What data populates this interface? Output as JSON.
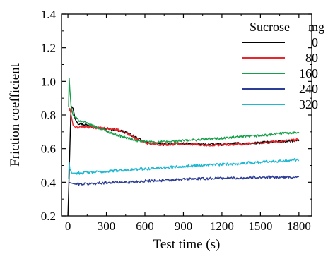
{
  "chart_data": {
    "type": "line",
    "xlabel": "Test time (s)",
    "ylabel": "Friction coefficient",
    "xlim": [
      -50,
      1900
    ],
    "ylim": [
      0.2,
      1.4
    ],
    "xticks": [
      0,
      300,
      600,
      900,
      1200,
      1500,
      1800
    ],
    "yticks": [
      0.2,
      0.4,
      0.6,
      0.8,
      1.0,
      1.2,
      1.4
    ],
    "xtick_labels": [
      "0",
      "300",
      "600",
      "900",
      "1200",
      "1500",
      "1800"
    ],
    "ytick_labels": [
      "0.2",
      "0.4",
      "0.6",
      "0.8",
      "1.0",
      "1.2",
      "1.4"
    ],
    "grid": false,
    "legend": {
      "placement": "top-right",
      "title": "Sucrose",
      "unit": "mg"
    },
    "series": [
      {
        "name": "0",
        "color": "#000000",
        "noise": 0.007,
        "points": [
          [
            0,
            0.2
          ],
          [
            8,
            0.4
          ],
          [
            15,
            0.6
          ],
          [
            22,
            0.8
          ],
          [
            30,
            0.85
          ],
          [
            40,
            0.84
          ],
          [
            55,
            0.78
          ],
          [
            80,
            0.75
          ],
          [
            150,
            0.74
          ],
          [
            250,
            0.72
          ],
          [
            350,
            0.715
          ],
          [
            450,
            0.7
          ],
          [
            520,
            0.67
          ],
          [
            580,
            0.645
          ],
          [
            650,
            0.63
          ],
          [
            750,
            0.625
          ],
          [
            900,
            0.63
          ],
          [
            1000,
            0.625
          ],
          [
            1100,
            0.625
          ],
          [
            1200,
            0.625
          ],
          [
            1300,
            0.63
          ],
          [
            1400,
            0.63
          ],
          [
            1500,
            0.635
          ],
          [
            1600,
            0.64
          ],
          [
            1700,
            0.645
          ],
          [
            1800,
            0.645
          ]
        ]
      },
      {
        "name": "80",
        "color": "#e8262b",
        "noise": 0.007,
        "points": [
          [
            8,
            0.82
          ],
          [
            15,
            0.84
          ],
          [
            25,
            0.8
          ],
          [
            40,
            0.74
          ],
          [
            60,
            0.725
          ],
          [
            100,
            0.73
          ],
          [
            200,
            0.725
          ],
          [
            300,
            0.72
          ],
          [
            400,
            0.71
          ],
          [
            500,
            0.675
          ],
          [
            560,
            0.65
          ],
          [
            600,
            0.635
          ],
          [
            700,
            0.625
          ],
          [
            800,
            0.625
          ],
          [
            900,
            0.63
          ],
          [
            1000,
            0.625
          ],
          [
            1100,
            0.62
          ],
          [
            1200,
            0.625
          ],
          [
            1300,
            0.625
          ],
          [
            1400,
            0.63
          ],
          [
            1500,
            0.635
          ],
          [
            1600,
            0.64
          ],
          [
            1700,
            0.645
          ],
          [
            1800,
            0.655
          ]
        ]
      },
      {
        "name": "160",
        "color": "#17a04a",
        "noise": 0.007,
        "points": [
          [
            5,
            0.85
          ],
          [
            10,
            1.02
          ],
          [
            15,
            0.95
          ],
          [
            25,
            0.85
          ],
          [
            40,
            0.8
          ],
          [
            80,
            0.77
          ],
          [
            150,
            0.75
          ],
          [
            250,
            0.72
          ],
          [
            350,
            0.69
          ],
          [
            450,
            0.665
          ],
          [
            550,
            0.645
          ],
          [
            650,
            0.64
          ],
          [
            750,
            0.64
          ],
          [
            850,
            0.645
          ],
          [
            950,
            0.65
          ],
          [
            1050,
            0.655
          ],
          [
            1150,
            0.66
          ],
          [
            1250,
            0.665
          ],
          [
            1350,
            0.67
          ],
          [
            1450,
            0.675
          ],
          [
            1550,
            0.68
          ],
          [
            1650,
            0.69
          ],
          [
            1750,
            0.695
          ],
          [
            1800,
            0.7
          ]
        ]
      },
      {
        "name": "240",
        "color": "#2b3d97",
        "noise": 0.008,
        "points": [
          [
            5,
            0.4
          ],
          [
            50,
            0.39
          ],
          [
            150,
            0.39
          ],
          [
            250,
            0.395
          ],
          [
            350,
            0.4
          ],
          [
            450,
            0.4
          ],
          [
            550,
            0.405
          ],
          [
            650,
            0.41
          ],
          [
            750,
            0.41
          ],
          [
            850,
            0.415
          ],
          [
            950,
            0.42
          ],
          [
            1050,
            0.42
          ],
          [
            1150,
            0.425
          ],
          [
            1250,
            0.425
          ],
          [
            1350,
            0.425
          ],
          [
            1450,
            0.43
          ],
          [
            1550,
            0.43
          ],
          [
            1650,
            0.43
          ],
          [
            1750,
            0.43
          ],
          [
            1800,
            0.435
          ]
        ]
      },
      {
        "name": "320",
        "color": "#1fb8d3",
        "noise": 0.008,
        "points": [
          [
            5,
            0.42
          ],
          [
            10,
            0.52
          ],
          [
            15,
            0.48
          ],
          [
            30,
            0.455
          ],
          [
            100,
            0.455
          ],
          [
            200,
            0.46
          ],
          [
            300,
            0.465
          ],
          [
            400,
            0.47
          ],
          [
            500,
            0.475
          ],
          [
            600,
            0.48
          ],
          [
            700,
            0.485
          ],
          [
            800,
            0.49
          ],
          [
            900,
            0.495
          ],
          [
            1000,
            0.5
          ],
          [
            1100,
            0.505
          ],
          [
            1200,
            0.505
          ],
          [
            1300,
            0.51
          ],
          [
            1400,
            0.515
          ],
          [
            1500,
            0.52
          ],
          [
            1600,
            0.525
          ],
          [
            1700,
            0.53
          ],
          [
            1800,
            0.535
          ]
        ]
      }
    ]
  }
}
